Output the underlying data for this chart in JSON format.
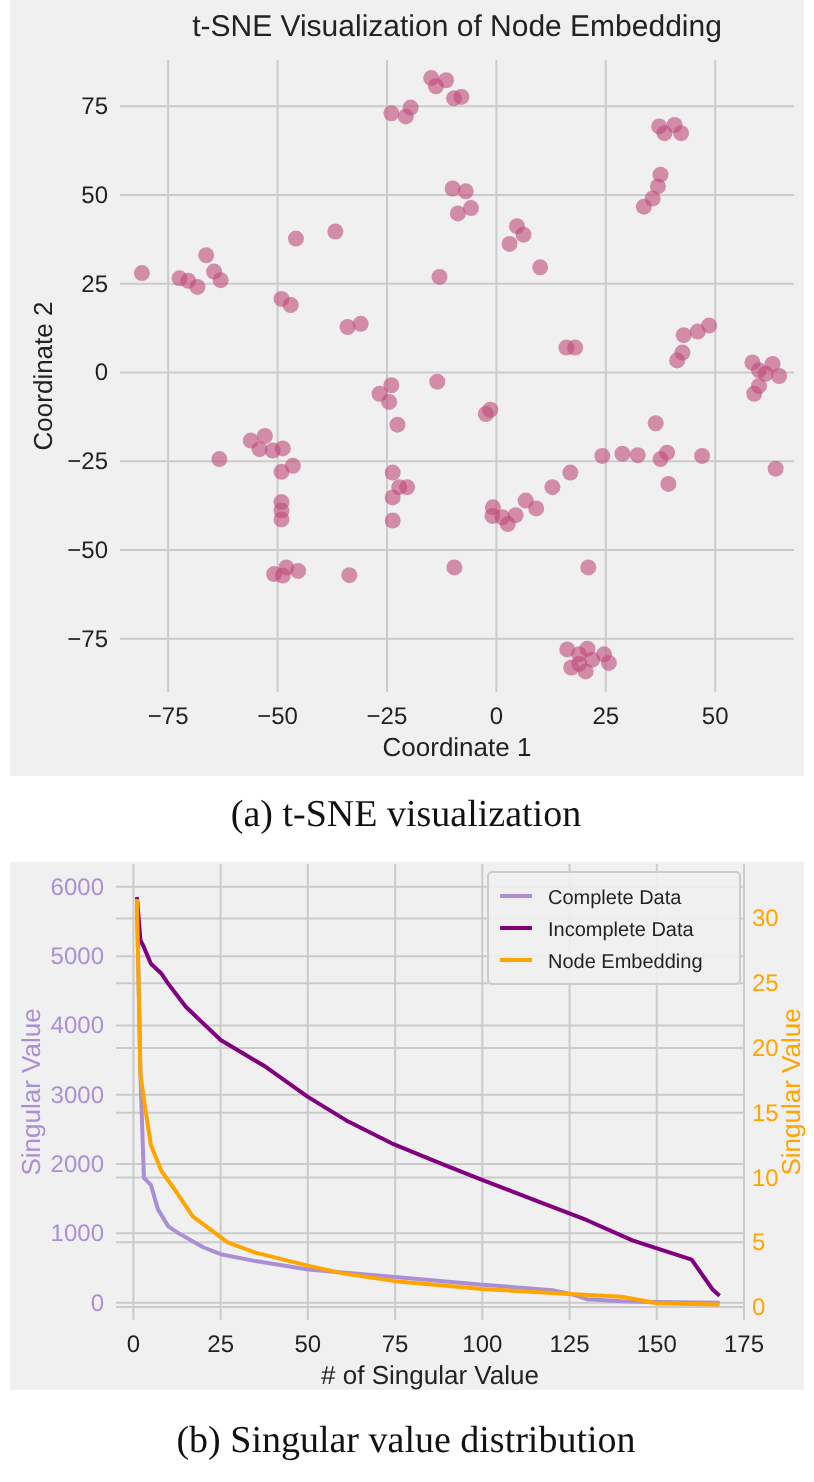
{
  "chart_data": [
    {
      "type": "scatter",
      "title": "t-SNE Visualization of Node Embedding",
      "xlabel": "Coordinate 1",
      "ylabel": "Coordinate 2",
      "annotations": [
        "(a) t-SNE visualization"
      ],
      "xlim": [
        -86,
        68
      ],
      "ylim": [
        -90,
        88
      ],
      "xticks": [
        {
          "value": -75,
          "label": "−75"
        },
        {
          "value": -50,
          "label": "−50"
        },
        {
          "value": -25,
          "label": "−25"
        },
        0,
        25,
        50
      ],
      "yticks": [
        {
          "value": -75,
          "label": "−75"
        },
        {
          "value": -50,
          "label": "−50"
        },
        {
          "value": -25,
          "label": "−25"
        },
        0,
        25,
        50,
        75
      ],
      "grid": true,
      "marker": "circle",
      "series": [
        {
          "color": "#c04a78",
          "x": [
            -81,
            -72.4,
            -70.4,
            -68.3,
            -66.3,
            -64.5,
            -63,
            -49.1,
            -47,
            -45.8,
            -36.8,
            -34,
            -31,
            -24,
            -20.7,
            -19.6,
            -14.9,
            -13.8,
            -11.5,
            -9.7,
            -8,
            -10,
            -7,
            -8.8,
            -5.8,
            -13,
            3,
            4.7,
            6.2,
            10,
            16,
            18,
            33.7,
            35.7,
            36.9,
            37.5,
            37.2,
            38.4,
            40.7,
            42.2,
            41.3,
            42.5,
            42.8,
            46,
            48.6,
            58.5,
            60,
            63.1,
            64.6,
            61.5,
            58.9,
            60,
            -26.7,
            -24,
            -24.5,
            -13.5,
            -22.6,
            -2.4,
            -1.4,
            36.4,
            -63.3,
            -56.1,
            -52.9,
            -54.1,
            -51.1,
            -48.8,
            -49.1,
            -46.5,
            -49.1,
            -49.1,
            -49.1,
            -23.7,
            -23.7,
            -22.2,
            -20.4,
            -23.7,
            -50.8,
            -48,
            -48.8,
            -45.3,
            -33.6,
            -9.6,
            -0.8,
            -0.9,
            1.4,
            2.6,
            4.4,
            6.7,
            9.1,
            12.8,
            16.9,
            24.2,
            28.8,
            32.3,
            37.5,
            39,
            39.3,
            47,
            63.8,
            21,
            16.2,
            18.9,
            20.8,
            17.1,
            20.4,
            21.9,
            24.6,
            25.7,
            18.9
          ],
          "values": [
            28,
            26.5,
            25.8,
            24.1,
            33,
            28.4,
            26,
            20.7,
            19,
            37.7,
            39.7,
            12.8,
            13.7,
            73,
            72.1,
            74.6,
            82.9,
            80.6,
            82.3,
            77.2,
            77.6,
            51.8,
            51,
            44.8,
            46.3,
            26.9,
            36.2,
            41.2,
            38.8,
            29.6,
            7,
            7,
            46.7,
            49,
            52.4,
            55.7,
            69.3,
            67.4,
            69.7,
            67.4,
            3.4,
            5.6,
            10.5,
            11.5,
            13.2,
            2.8,
            0.6,
            2.4,
            -1,
            -0.4,
            -6,
            -3.8,
            -6,
            -3.6,
            -8.3,
            -2.6,
            -14.7,
            -11.7,
            -10.5,
            -14.3,
            -24.4,
            -19.2,
            -17.9,
            -21.6,
            -22,
            -21.4,
            -28,
            -26.3,
            -36.5,
            -38.9,
            -41.4,
            -28.2,
            -35.2,
            -32.3,
            -32.3,
            -41.7,
            -56.8,
            -54.9,
            -57.2,
            -55.9,
            -57.1,
            -54.9,
            -38,
            -40.4,
            -40.8,
            -42.7,
            -40.2,
            -36.1,
            -38.3,
            -32.3,
            -28.2,
            -23.5,
            -22.9,
            -23.3,
            -24.4,
            -22.6,
            -31.4,
            -23.5,
            -27.1,
            -54.9,
            -78,
            -79.4,
            -77.8,
            -83.1,
            -84.2,
            -80.9,
            -79.4,
            -81.8,
            -82.1
          ]
        }
      ]
    },
    {
      "type": "line",
      "xlabel": "# of Singular Value",
      "ylabel": "Singular Value",
      "y2label": "Singular Value",
      "annotations": [
        "(b) Singular value distribution"
      ],
      "xlim": [
        -5,
        175
      ],
      "xticks": [
        0,
        25,
        50,
        75,
        100,
        125,
        150,
        175
      ],
      "ylim": [
        -250,
        6330
      ],
      "yticks": [
        0,
        1000,
        2000,
        3000,
        4000,
        5000,
        6000
      ],
      "y2lim": [
        -1,
        34.2
      ],
      "y2ticks": [
        0,
        5,
        10,
        15,
        20,
        25,
        30
      ],
      "grid": true,
      "legend": "top right",
      "line_style": "solid",
      "marker": "none",
      "series": [
        {
          "name": "Complete Data",
          "color": "#a98fd6",
          "axis": "y",
          "x": [
            1,
            2,
            3,
            5,
            7,
            10,
            13,
            20,
            25,
            35,
            50,
            75,
            100,
            120,
            125,
            130,
            140,
            150,
            168
          ],
          "values": [
            5850,
            3300,
            1800,
            1700,
            1350,
            1100,
            1000,
            800,
            700,
            600,
            480,
            370,
            260,
            180,
            130,
            50,
            20,
            10,
            0
          ]
        },
        {
          "name": "Incomplete Data",
          "color": "#800080",
          "axis": "y",
          "x": [
            1,
            2,
            3,
            5,
            8,
            10,
            15,
            25,
            38,
            50,
            61,
            74,
            88,
            99,
            115,
            130,
            143,
            160,
            166,
            168
          ],
          "values": [
            5850,
            5230,
            5130,
            4890,
            4750,
            4600,
            4270,
            3790,
            3400,
            2970,
            2630,
            2300,
            2010,
            1790,
            1480,
            1190,
            900,
            620,
            190,
            100
          ]
        },
        {
          "name": "Node Embedding",
          "color": "#ffa500",
          "axis": "y2",
          "x": [
            1,
            2,
            3,
            5,
            8,
            12,
            17,
            22,
            27,
            35,
            50,
            60,
            75,
            100,
            125,
            140,
            150,
            168
          ],
          "values": [
            31.5,
            18,
            16,
            12.5,
            10.5,
            9,
            7,
            6,
            5,
            4.2,
            3.2,
            2.6,
            2,
            1.4,
            1,
            0.8,
            0.3,
            0.2
          ]
        }
      ]
    }
  ]
}
